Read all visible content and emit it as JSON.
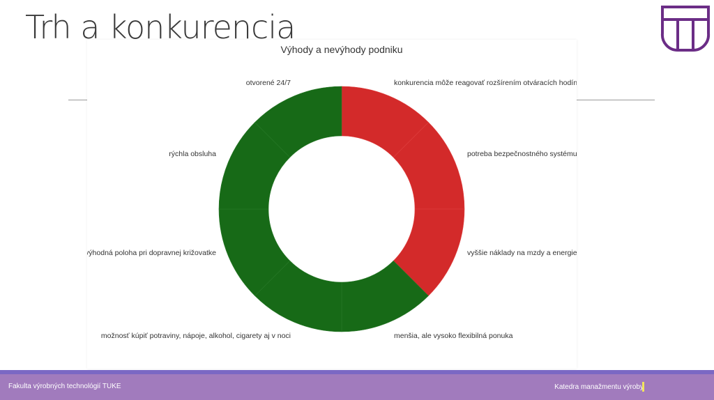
{
  "slide": {
    "title": "Trh a konkurencia",
    "footer_left": "Fakulta výrobných technológií TUKE",
    "footer_right": "Katedra manažmentu výroby",
    "logo_text": "TU"
  },
  "chart_data": {
    "type": "pie",
    "donut": true,
    "title": "Výhody a nevýhody podniku",
    "start": "top",
    "direction": "clockwise",
    "slices": [
      {
        "label": "konkurencia môže reagovať rozšírením otváracích hodín",
        "value": 1,
        "color": "#d32a2a"
      },
      {
        "label": "potreba bezpečnostného systému",
        "value": 1,
        "color": "#d32a2a"
      },
      {
        "label": "vyššie náklady na mzdy a energie",
        "value": 1,
        "color": "#d32a2a"
      },
      {
        "label": "menšia, ale vysoko flexibilná ponuka",
        "value": 1,
        "color": "#176a17"
      },
      {
        "label": "možnosť kúpiť potraviny, nápoje, alkohol, cigarety aj v noci",
        "value": 1,
        "color": "#176a17"
      },
      {
        "label": "výhodná poloha pri dopravnej križovatke",
        "value": 1,
        "color": "#176a17"
      },
      {
        "label": "rýchla obsluha",
        "value": 1,
        "color": "#176a17"
      },
      {
        "label": "otvorené 24/7",
        "value": 1,
        "color": "#176a17"
      }
    ]
  }
}
